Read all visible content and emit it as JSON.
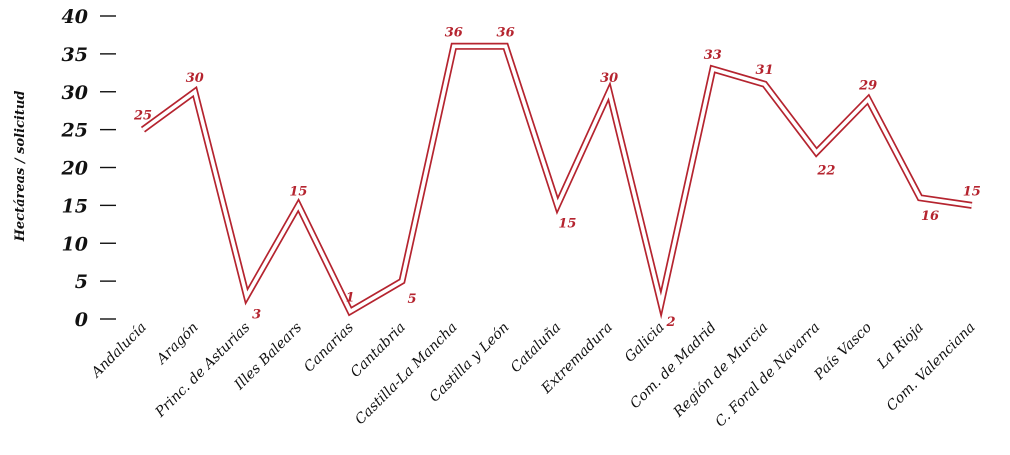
{
  "chart_data": {
    "type": "line",
    "ylabel": "Hectáreas / solicitud",
    "ylim": [
      0,
      40
    ],
    "yticks": [
      "0",
      "5",
      "10",
      "15",
      "20",
      "25",
      "30",
      "35",
      "40"
    ],
    "grid": false,
    "categories": [
      "Andalucía",
      "Aragón",
      "Princ. de Asturias",
      "Illes Balears",
      "Canarias",
      "Cantabria",
      "Castilla-La Mancha",
      "Castilla y León",
      "Cataluña",
      "Extremadura",
      "Galicia",
      "Com. de Madrid",
      "Región de Murcia",
      "C. Foral de Navarra",
      "País Vasco",
      "La Rioja",
      "Com. Valenciana"
    ],
    "values": [
      25,
      30,
      3,
      15,
      1,
      5,
      36,
      36,
      15,
      30,
      2,
      33,
      31,
      22,
      29,
      16,
      15
    ],
    "data_labels": [
      "25",
      "30",
      "3",
      "15",
      "1",
      "5",
      "36",
      "36",
      "15",
      "30",
      "2",
      "33",
      "31",
      "22",
      "29",
      "16",
      "15"
    ],
    "label_position": [
      "above",
      "above",
      "below",
      "above",
      "above",
      "below",
      "above",
      "above",
      "below",
      "above",
      "below",
      "above",
      "above",
      "below",
      "above",
      "below",
      "above"
    ],
    "line_color": "#b5242f"
  }
}
